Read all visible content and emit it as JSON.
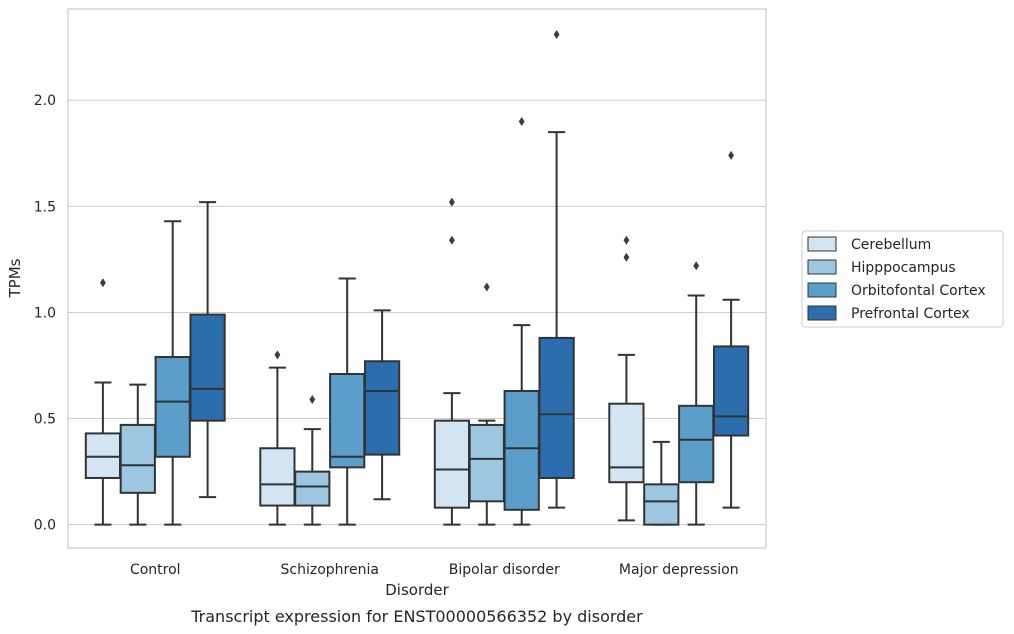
{
  "caption": "Transcript expression for ENST00000566352 by disorder",
  "chart_data": {
    "type": "box",
    "title": "",
    "xlabel": "Disorder",
    "ylabel": "TPMs",
    "ylim": [
      -0.11,
      2.43
    ],
    "yticks": [
      0.0,
      0.5,
      1.0,
      1.5,
      2.0
    ],
    "ytick_labels": [
      "0.0",
      "0.5",
      "1.0",
      "1.5",
      "2.0"
    ],
    "grid": "horizontal",
    "legend_position": "right",
    "categories": [
      "Control",
      "Schizophrenia",
      "Bipolar disorder",
      "Major depression"
    ],
    "series": [
      {
        "name": "Cerebellum",
        "color": "#d3e4f3",
        "boxes": [
          {
            "whislo": 0.0,
            "q1": 0.22,
            "med": 0.32,
            "q3": 0.43,
            "whishi": 0.67,
            "fliers": [
              1.14
            ]
          },
          {
            "whislo": 0.0,
            "q1": 0.09,
            "med": 0.19,
            "q3": 0.36,
            "whishi": 0.74,
            "fliers": [
              0.8
            ]
          },
          {
            "whislo": 0.0,
            "q1": 0.08,
            "med": 0.26,
            "q3": 0.49,
            "whishi": 0.62,
            "fliers": [
              1.34,
              1.52
            ]
          },
          {
            "whislo": 0.02,
            "q1": 0.2,
            "med": 0.27,
            "q3": 0.57,
            "whishi": 0.8,
            "fliers": [
              1.26,
              1.34
            ]
          }
        ]
      },
      {
        "name": "Hipppocampus",
        "color": "#9dc6e0",
        "boxes": [
          {
            "whislo": 0.0,
            "q1": 0.15,
            "med": 0.28,
            "q3": 0.47,
            "whishi": 0.66,
            "fliers": []
          },
          {
            "whislo": 0.0,
            "q1": 0.09,
            "med": 0.18,
            "q3": 0.25,
            "whishi": 0.45,
            "fliers": [
              0.59
            ]
          },
          {
            "whislo": 0.0,
            "q1": 0.11,
            "med": 0.31,
            "q3": 0.47,
            "whishi": 0.49,
            "fliers": [
              1.12
            ]
          },
          {
            "whislo": 0.0,
            "q1": 0.0,
            "med": 0.11,
            "q3": 0.19,
            "whishi": 0.39,
            "fliers": []
          }
        ]
      },
      {
        "name": "Orbitofontal Cortex",
        "color": "#5a9ec9",
        "boxes": [
          {
            "whislo": 0.0,
            "q1": 0.32,
            "med": 0.58,
            "q3": 0.79,
            "whishi": 1.43,
            "fliers": []
          },
          {
            "whislo": 0.0,
            "q1": 0.27,
            "med": 0.32,
            "q3": 0.71,
            "whishi": 1.16,
            "fliers": []
          },
          {
            "whislo": 0.0,
            "q1": 0.07,
            "med": 0.36,
            "q3": 0.63,
            "whishi": 0.94,
            "fliers": [
              1.9
            ]
          },
          {
            "whislo": 0.0,
            "q1": 0.2,
            "med": 0.4,
            "q3": 0.56,
            "whishi": 1.08,
            "fliers": [
              1.22
            ]
          }
        ]
      },
      {
        "name": "Prefrontal Cortex",
        "color": "#2c6ead",
        "boxes": [
          {
            "whislo": 0.13,
            "q1": 0.49,
            "med": 0.64,
            "q3": 0.99,
            "whishi": 1.52,
            "fliers": []
          },
          {
            "whislo": 0.12,
            "q1": 0.33,
            "med": 0.63,
            "q3": 0.77,
            "whishi": 1.01,
            "fliers": []
          },
          {
            "whislo": 0.08,
            "q1": 0.22,
            "med": 0.52,
            "q3": 0.88,
            "whishi": 1.85,
            "fliers": [
              2.31
            ]
          },
          {
            "whislo": 0.08,
            "q1": 0.42,
            "med": 0.51,
            "q3": 0.84,
            "whishi": 1.06,
            "fliers": [
              1.74
            ]
          }
        ]
      }
    ]
  }
}
